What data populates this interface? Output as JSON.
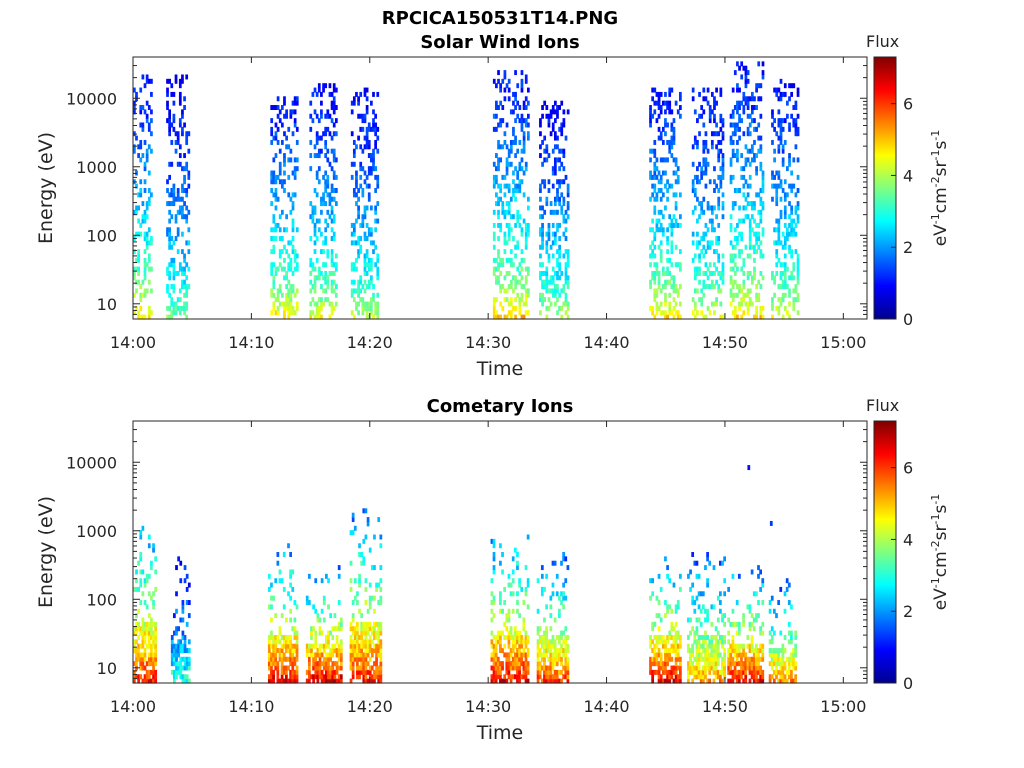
{
  "figure": {
    "main_title": "RPCICA150531T14.PNG"
  },
  "chart_data": [
    {
      "type": "heatmap",
      "title": "Solar Wind Ions",
      "xlabel": "Time",
      "ylabel": "Energy (eV)",
      "y_scale": "log",
      "ylim": [
        6,
        40000
      ],
      "xlim": [
        "14:00",
        "15:02"
      ],
      "x_ticks": [
        "14:00",
        "14:10",
        "14:20",
        "14:30",
        "14:40",
        "14:50",
        "15:00"
      ],
      "y_ticks": [
        "10",
        "100",
        "1000",
        "10000"
      ],
      "colorbar": {
        "title": "Flux",
        "label": "eV-1cm-2sr-1s-1",
        "ticks": [
          "0",
          "2",
          "4",
          "6"
        ],
        "range": [
          0,
          7.3
        ],
        "colormap": "jet"
      },
      "bursts": [
        {
          "start_min": 0.0,
          "end_min": 1.6,
          "e_low": 6,
          "e_high": 22000,
          "peak_flux": 5.5
        },
        {
          "start_min": 2.8,
          "end_min": 4.7,
          "e_low": 6,
          "e_high": 22000,
          "peak_flux": 4.2
        },
        {
          "start_min": 11.6,
          "end_min": 13.8,
          "e_low": 6,
          "e_high": 11000,
          "peak_flux": 5.4
        },
        {
          "start_min": 14.9,
          "end_min": 17.2,
          "e_low": 6,
          "e_high": 17000,
          "peak_flux": 5.0
        },
        {
          "start_min": 18.4,
          "end_min": 20.7,
          "e_low": 6,
          "e_high": 15000,
          "peak_flux": 4.6
        },
        {
          "start_min": 30.4,
          "end_min": 33.4,
          "e_low": 6,
          "e_high": 27000,
          "peak_flux": 5.6
        },
        {
          "start_min": 34.3,
          "end_min": 36.7,
          "e_low": 6,
          "e_high": 9000,
          "peak_flux": 4.6
        },
        {
          "start_min": 43.6,
          "end_min": 46.3,
          "e_low": 6,
          "e_high": 14000,
          "peak_flux": 5.5
        },
        {
          "start_min": 47.2,
          "end_min": 49.8,
          "e_low": 6,
          "e_high": 14000,
          "peak_flux": 5.0
        },
        {
          "start_min": 50.4,
          "end_min": 53.2,
          "e_low": 6,
          "e_high": 36000,
          "peak_flux": 5.5
        },
        {
          "start_min": 53.9,
          "end_min": 56.1,
          "e_low": 6,
          "e_high": 20000,
          "peak_flux": 5.0
        }
      ]
    },
    {
      "type": "heatmap",
      "title": "Cometary Ions",
      "xlabel": "Time",
      "ylabel": "Energy (eV)",
      "y_scale": "log",
      "ylim": [
        6,
        40000
      ],
      "xlim": [
        "14:00",
        "15:02"
      ],
      "x_ticks": [
        "14:00",
        "14:10",
        "14:20",
        "14:30",
        "14:40",
        "14:50",
        "15:00"
      ],
      "y_ticks": [
        "10",
        "100",
        "1000",
        "10000"
      ],
      "colorbar": {
        "title": "Flux",
        "label": "eV-1cm-2sr-1s-1",
        "ticks": [
          "0",
          "2",
          "4",
          "6"
        ],
        "range": [
          0,
          7.3
        ],
        "colormap": "jet"
      },
      "bursts": [
        {
          "start_min": 0.0,
          "end_min": 1.9,
          "e_low": 6,
          "e_high": 2200,
          "peak_flux": 6.5
        },
        {
          "start_min": 3.2,
          "end_min": 4.7,
          "e_low": 6,
          "e_high": 400,
          "peak_flux": 3.2
        },
        {
          "start_min": 11.4,
          "end_min": 13.9,
          "e_low": 6,
          "e_high": 700,
          "peak_flux": 6.8
        },
        {
          "start_min": 14.6,
          "end_min": 17.6,
          "e_low": 6,
          "e_high": 300,
          "peak_flux": 7.0
        },
        {
          "start_min": 18.3,
          "end_min": 20.9,
          "e_low": 6,
          "e_high": 2600,
          "peak_flux": 6.5
        },
        {
          "start_min": 30.2,
          "end_min": 33.3,
          "e_low": 6,
          "e_high": 1000,
          "peak_flux": 6.8
        },
        {
          "start_min": 34.1,
          "end_min": 36.8,
          "e_low": 6,
          "e_high": 500,
          "peak_flux": 6.3
        },
        {
          "start_min": 43.6,
          "end_min": 46.3,
          "e_low": 6,
          "e_high": 500,
          "peak_flux": 6.8
        },
        {
          "start_min": 46.8,
          "end_min": 49.9,
          "e_low": 6,
          "e_high": 550,
          "peak_flux": 5.6
        },
        {
          "start_min": 50.2,
          "end_min": 53.2,
          "e_low": 6,
          "e_high": 300,
          "peak_flux": 6.8
        },
        {
          "start_min": 53.7,
          "end_min": 56.0,
          "e_low": 6,
          "e_high": 200,
          "peak_flux": 5.8
        }
      ],
      "isolated_points": [
        {
          "t_min": 51.9,
          "energy": 8500,
          "flux": 1.0
        },
        {
          "t_min": 53.8,
          "energy": 1300,
          "flux": 1.3
        }
      ]
    }
  ]
}
